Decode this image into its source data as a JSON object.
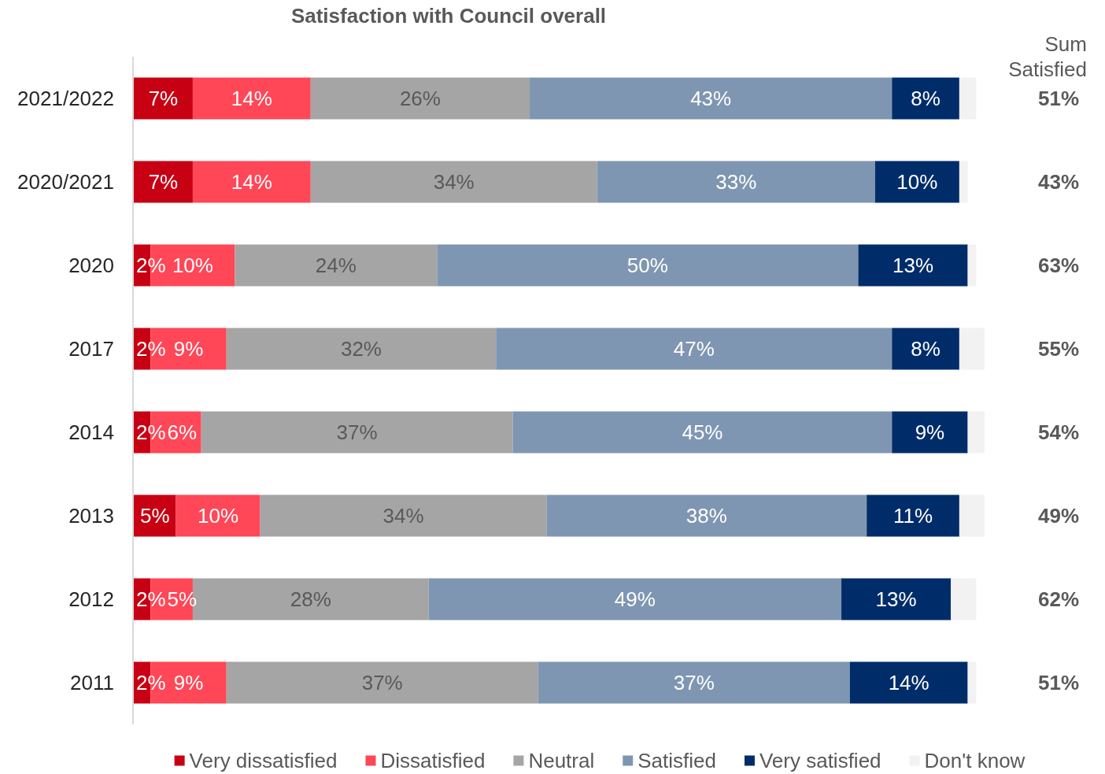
{
  "chart_data": {
    "type": "bar",
    "orientation": "horizontal",
    "stacked": true,
    "title": "Satisfaction with Council overall",
    "categories": [
      "2021/2022",
      "2020/2021",
      "2020",
      "2017",
      "2014",
      "2013",
      "2012",
      "2011"
    ],
    "series": [
      {
        "name": "Very dissatisfied",
        "color": "#c80013",
        "values": [
          7,
          7,
          2,
          2,
          2,
          5,
          2,
          2
        ],
        "value_labels": [
          "7%",
          "7%",
          "2%",
          "2%",
          "2%",
          "5%",
          "2%",
          "2%"
        ]
      },
      {
        "name": "Dissatisfied",
        "color": "#ff4757",
        "values": [
          14,
          14,
          10,
          9,
          6,
          10,
          5,
          9
        ],
        "value_labels": [
          "14%",
          "14%",
          "10%",
          "9%",
          "6%",
          "10%",
          "5%",
          "9%"
        ]
      },
      {
        "name": "Neutral",
        "color": "#a5a5a5",
        "values": [
          26,
          34,
          24,
          32,
          37,
          34,
          28,
          37
        ],
        "value_labels": [
          "26%",
          "34%",
          "24%",
          "32%",
          "37%",
          "34%",
          "28%",
          "37%"
        ]
      },
      {
        "name": "Satisfied",
        "color": "#7f96b2",
        "values": [
          43,
          33,
          50,
          47,
          45,
          38,
          49,
          37
        ],
        "value_labels": [
          "43%",
          "33%",
          "50%",
          "47%",
          "45%",
          "38%",
          "49%",
          "37%"
        ]
      },
      {
        "name": "Very satisfied",
        "color": "#002d6a",
        "values": [
          8,
          10,
          13,
          8,
          9,
          11,
          13,
          14
        ],
        "value_labels": [
          "8%",
          "10%",
          "13%",
          "8%",
          "9%",
          "11%",
          "13%",
          "14%"
        ]
      },
      {
        "name": "Don't know",
        "color": "#f2f2f2",
        "values": [
          2,
          1,
          1,
          3,
          2,
          3,
          3,
          1
        ]
      }
    ],
    "annotations": [
      "Sum Satisfied",
      "51%",
      "43%",
      "63%",
      "55%",
      "54%",
      "49%",
      "62%",
      "51%"
    ],
    "legend": "bottom"
  }
}
